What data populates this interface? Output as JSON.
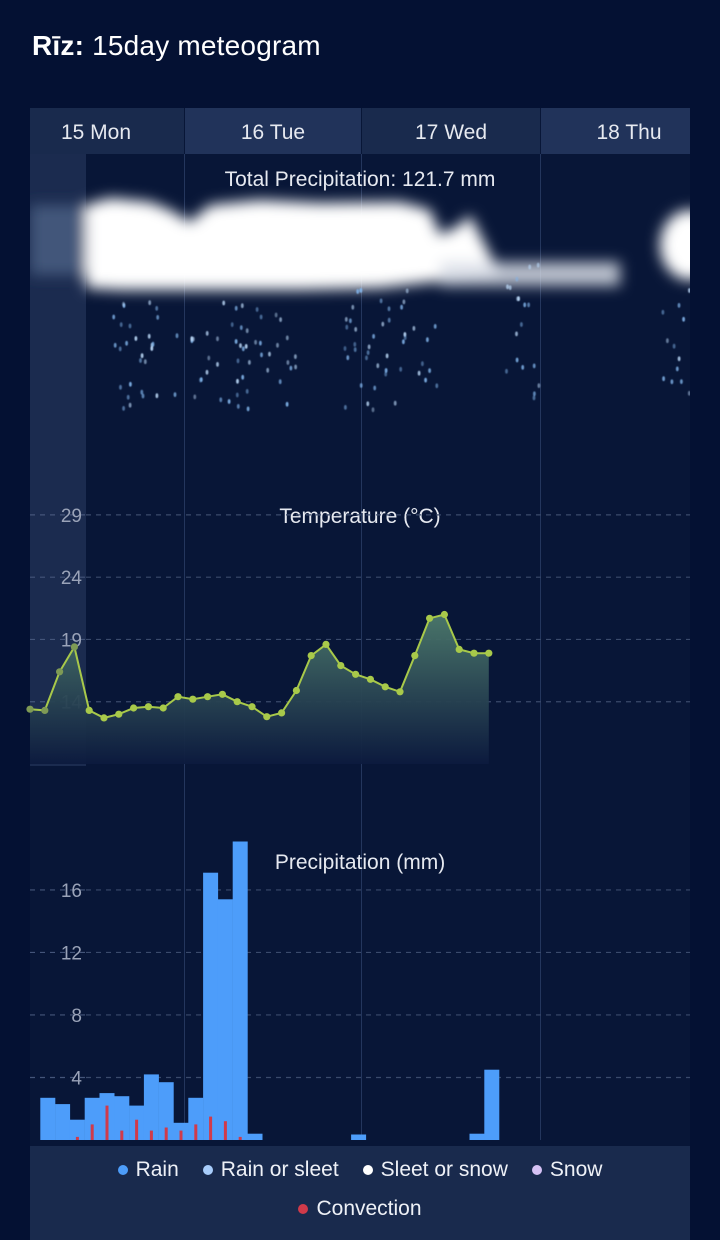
{
  "header": {
    "location": "Rīz:",
    "title": "15day meteogram"
  },
  "days": [
    "15 Mon",
    "16 Tue",
    "17 Wed",
    "18 Thu"
  ],
  "chart_data": [
    {
      "type": "area",
      "title": "Total Precipitation: 121.7 mm",
      "description_kind": "cloud-and-rain-visualization",
      "total_precipitation_mm": 121.7
    },
    {
      "type": "line",
      "title": "Temperature (°C)",
      "ylim": [
        9,
        31
      ],
      "yticks": [
        29,
        24,
        19,
        14
      ],
      "line_color": "#a8c94a",
      "x_hours": [
        0,
        3,
        6,
        9,
        12,
        15,
        18,
        21,
        24,
        27,
        30,
        33,
        36,
        39,
        42,
        45,
        48,
        51,
        54,
        57,
        60,
        63,
        66,
        69,
        72,
        75,
        78,
        81,
        84,
        87,
        90,
        93
      ],
      "values": [
        13.4,
        13.3,
        16.4,
        18.4,
        13.3,
        12.7,
        13.0,
        13.5,
        13.6,
        13.5,
        14.4,
        14.2,
        14.4,
        14.6,
        14.0,
        13.6,
        12.8,
        13.1,
        14.9,
        17.7,
        18.6,
        16.9,
        16.2,
        15.8,
        15.2,
        14.8,
        17.7,
        20.7,
        21.0,
        18.2,
        17.9,
        17.9
      ]
    },
    {
      "type": "bar",
      "title": "Precipitation (mm)",
      "ylim": [
        0,
        19
      ],
      "yticks": [
        16,
        12,
        8,
        4
      ],
      "x_hours": [
        3,
        6,
        9,
        12,
        15,
        18,
        21,
        24,
        27,
        30,
        33,
        36,
        39,
        42,
        45,
        48,
        51,
        54,
        57,
        60,
        63,
        66,
        69,
        72,
        75,
        78,
        81,
        84,
        87,
        90,
        93
      ],
      "series": [
        {
          "name": "Rain",
          "color": "#4d9dfa",
          "values": [
            2.7,
            2.3,
            1.3,
            2.7,
            3.0,
            2.8,
            2.2,
            4.2,
            3.7,
            1.1,
            2.7,
            17.1,
            15.4,
            19.1,
            0.4,
            0,
            0,
            0,
            0,
            0,
            0,
            0.35,
            0,
            0,
            0,
            0,
            0,
            0,
            0,
            0.4,
            4.5
          ]
        },
        {
          "name": "Convection",
          "color": "#d03a4a",
          "values": [
            0,
            0,
            0.2,
            1.0,
            2.2,
            0.6,
            1.3,
            0.6,
            0.8,
            0.6,
            1.0,
            1.5,
            1.2,
            0.2,
            0,
            0,
            0,
            0,
            0,
            0,
            0,
            0,
            0,
            0,
            0,
            0,
            0,
            0,
            0,
            0,
            0
          ]
        }
      ]
    }
  ],
  "legend": {
    "items": [
      {
        "name": "Rain",
        "color": "#4d9dfa"
      },
      {
        "name": "Rain or sleet",
        "color": "#a8cdfb"
      },
      {
        "name": "Sleet or snow",
        "color": "#ffffff"
      },
      {
        "name": "Snow",
        "color": "#d6c2f5"
      },
      {
        "name": "Convection",
        "color": "#d03a4a"
      }
    ]
  }
}
